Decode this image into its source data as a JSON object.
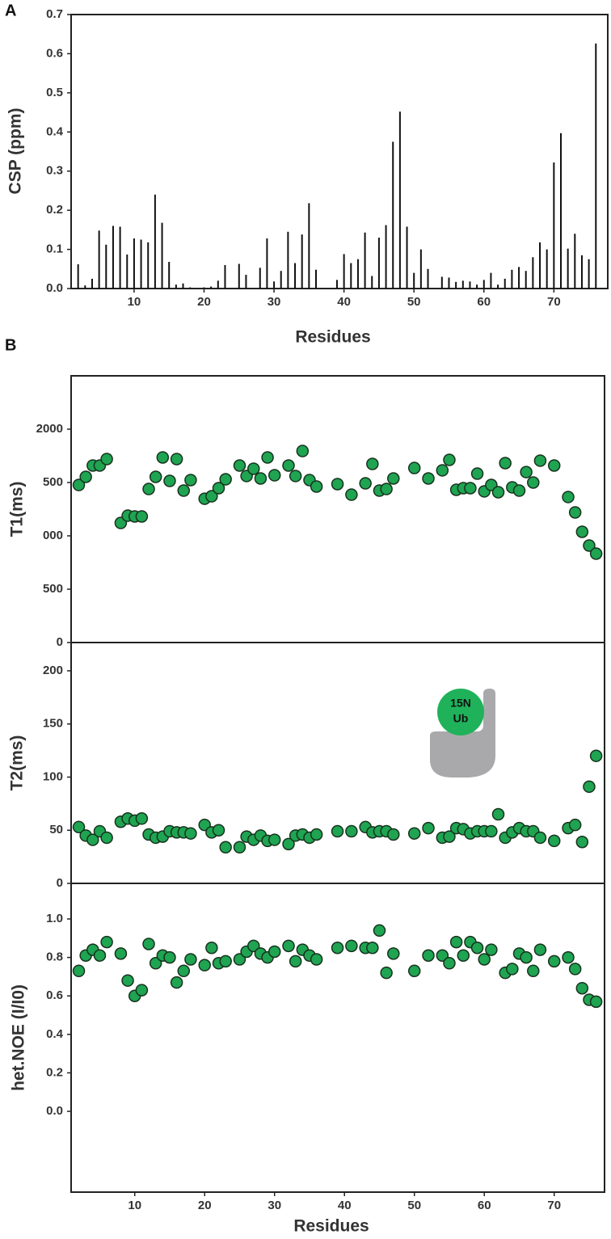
{
  "chart_data": [
    {
      "type": "bar",
      "panel_label": "A",
      "ylabel": "CSP (ppm)",
      "xlabel": "Residues",
      "color": "#111111",
      "x": [
        2,
        3,
        4,
        5,
        6,
        7,
        8,
        9,
        10,
        11,
        12,
        13,
        14,
        15,
        16,
        17,
        18,
        20,
        21,
        22,
        23,
        25,
        26,
        28,
        29,
        30,
        31,
        32,
        33,
        34,
        35,
        36,
        39,
        40,
        41,
        42,
        43,
        44,
        45,
        46,
        47,
        48,
        49,
        50,
        51,
        52,
        54,
        55,
        56,
        57,
        58,
        59,
        60,
        61,
        62,
        63,
        64,
        65,
        66,
        67,
        68,
        69,
        70,
        71,
        72,
        73,
        74,
        75,
        76
      ],
      "values": [
        0.062,
        0.008,
        0.025,
        0.148,
        0.112,
        0.16,
        0.158,
        0.087,
        0.128,
        0.125,
        0.118,
        0.24,
        0.168,
        0.068,
        0.01,
        0.013,
        0.003,
        0.003,
        0.005,
        0.02,
        0.06,
        0.063,
        0.035,
        0.053,
        0.128,
        0.018,
        0.045,
        0.145,
        0.065,
        0.138,
        0.218,
        0.048,
        0.022,
        0.088,
        0.065,
        0.075,
        0.143,
        0.032,
        0.13,
        0.162,
        0.375,
        0.452,
        0.158,
        0.04,
        0.1,
        0.05,
        0.03,
        0.028,
        0.017,
        0.02,
        0.018,
        0.01,
        0.022,
        0.04,
        0.01,
        0.025,
        0.048,
        0.055,
        0.045,
        0.08,
        0.118,
        0.1,
        0.322,
        0.397,
        0.102,
        0.14,
        0.085,
        0.075,
        0.626
      ],
      "xlim": [
        1,
        77.7
      ],
      "xticks": [
        10,
        20,
        30,
        40,
        50,
        60,
        70
      ],
      "ylim": [
        0,
        0.7
      ],
      "yticks": [
        {
          "value": 0,
          "label": "0.0"
        },
        0.1,
        0.2,
        0.3,
        0.4,
        0.5,
        0.6,
        0.7
      ]
    },
    {
      "type": "scatter",
      "panel_label": "B",
      "ylabel": "T1(ms)",
      "color": "#1fa452",
      "x": [
        2,
        3,
        4,
        5,
        6,
        8,
        9,
        10,
        11,
        12,
        13,
        14,
        15,
        16,
        17,
        18,
        20,
        21,
        22,
        23,
        25,
        26,
        27,
        28,
        29,
        30,
        32,
        33,
        34,
        35,
        36,
        39,
        41,
        43,
        44,
        45,
        46,
        47,
        50,
        52,
        54,
        55,
        56,
        57,
        58,
        59,
        60,
        61,
        62,
        63,
        64,
        65,
        66,
        67,
        68,
        70,
        72,
        73,
        74,
        75,
        76
      ],
      "values": [
        1477,
        1553,
        1659,
        1659,
        1720,
        1121,
        1189,
        1182,
        1182,
        1439,
        1553,
        1735,
        1515,
        1720,
        1424,
        1523,
        1348,
        1371,
        1447,
        1530,
        1659,
        1561,
        1629,
        1538,
        1735,
        1568,
        1659,
        1561,
        1795,
        1523,
        1462,
        1485,
        1386,
        1492,
        1674,
        1424,
        1439,
        1538,
        1636,
        1538,
        1614,
        1712,
        1432,
        1447,
        1447,
        1583,
        1417,
        1477,
        1409,
        1682,
        1455,
        1424,
        1598,
        1500,
        1705,
        1659,
        1364,
        1220,
        1038,
        909,
        833
      ],
      "xlim": [
        0.9,
        77.2
      ],
      "ylim": [
        0,
        2500
      ],
      "yticks": [
        0,
        500,
        {
          "value": 1000,
          "label": "000"
        },
        {
          "value": 1500,
          "label": "500"
        },
        2000
      ]
    },
    {
      "type": "scatter",
      "ylabel": "T2(ms)",
      "color": "#1fa452",
      "annotation": [
        "15N",
        "Ub"
      ],
      "x": [
        2,
        3,
        4,
        5,
        6,
        8,
        9,
        10,
        11,
        12,
        13,
        14,
        15,
        16,
        17,
        18,
        20,
        21,
        22,
        23,
        25,
        26,
        27,
        28,
        29,
        30,
        32,
        33,
        34,
        35,
        36,
        39,
        41,
        43,
        44,
        45,
        46,
        47,
        50,
        52,
        54,
        55,
        56,
        57,
        58,
        59,
        60,
        61,
        62,
        63,
        64,
        65,
        66,
        67,
        68,
        70,
        72,
        73,
        74,
        75,
        76
      ],
      "values": [
        53,
        45,
        41,
        49,
        43,
        58,
        61,
        59,
        61,
        46,
        43,
        44,
        49,
        48,
        48,
        47,
        55,
        48,
        50,
        34,
        34,
        44,
        41,
        45,
        40,
        41,
        37,
        45,
        46,
        43,
        46,
        49,
        49,
        53,
        48,
        49,
        49,
        46,
        47,
        52,
        43,
        44,
        52,
        51,
        47,
        49,
        49,
        49,
        65,
        43,
        48,
        52,
        49,
        49,
        43,
        40,
        52,
        55,
        39,
        91,
        120
      ],
      "xlim": [
        0.9,
        77.2
      ],
      "ylim": [
        0,
        226.6
      ],
      "yticks": [
        0,
        50,
        100,
        150,
        200
      ]
    },
    {
      "type": "scatter",
      "ylabel": "het.NOE (I/I0)",
      "xlabel": "Residues",
      "color": "#1fa452",
      "x": [
        2,
        3,
        4,
        5,
        6,
        8,
        9,
        10,
        11,
        12,
        13,
        14,
        15,
        16,
        17,
        18,
        20,
        21,
        22,
        23,
        25,
        26,
        27,
        28,
        29,
        30,
        32,
        33,
        34,
        35,
        36,
        39,
        41,
        43,
        44,
        45,
        46,
        47,
        50,
        52,
        54,
        55,
        56,
        57,
        58,
        59,
        60,
        61,
        63,
        64,
        65,
        66,
        67,
        68,
        70,
        72,
        73,
        74,
        75,
        76
      ],
      "values": [
        0.73,
        0.81,
        0.84,
        0.81,
        0.88,
        0.82,
        0.68,
        0.6,
        0.63,
        0.87,
        0.77,
        0.81,
        0.8,
        0.67,
        0.73,
        0.79,
        0.76,
        0.85,
        0.77,
        0.78,
        0.79,
        0.83,
        0.86,
        0.82,
        0.8,
        0.83,
        0.86,
        0.78,
        0.84,
        0.81,
        0.79,
        0.85,
        0.86,
        0.85,
        0.85,
        0.94,
        0.72,
        0.82,
        0.73,
        0.81,
        0.81,
        0.77,
        0.88,
        0.81,
        0.88,
        0.85,
        0.79,
        0.84,
        0.72,
        0.74,
        0.82,
        0.8,
        0.73,
        0.84,
        0.78,
        0.8,
        0.74,
        0.64,
        0.58,
        0.57
      ],
      "xlim": [
        0.9,
        77.2
      ],
      "xticks": [
        10,
        20,
        30,
        40,
        50,
        60,
        70
      ],
      "ylim": [
        -0.42,
        1.185
      ],
      "yticks": [
        {
          "value": 0,
          "label": "0.0"
        },
        0.2,
        0.4,
        0.6,
        0.8,
        {
          "value": 1,
          "label": "1.0"
        }
      ]
    }
  ]
}
